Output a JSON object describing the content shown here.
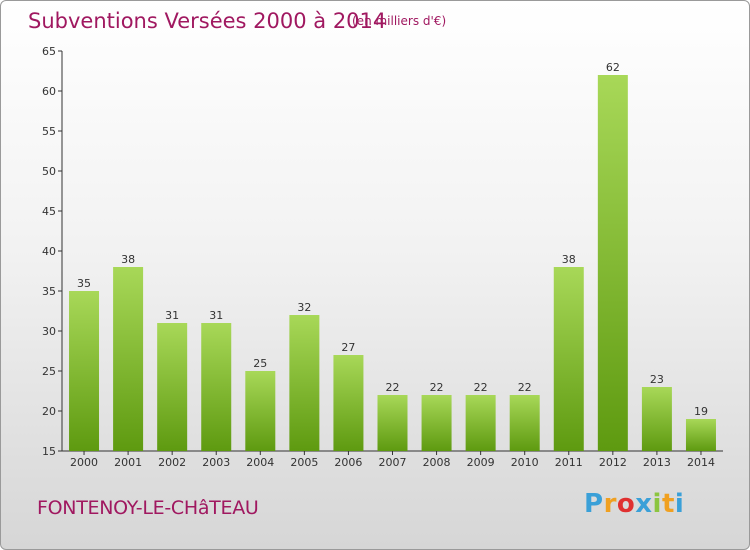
{
  "title": "Subventions Versées 2000 à 2014",
  "subtitle": "(en milliers d'€)",
  "commune": "FONTENOY-LE-CHâTEAU",
  "logo_text": "Proxiti",
  "colors": {
    "title": "#a01860",
    "bar_light": "#a8d858",
    "bar_dark": "#5e9a10",
    "axis": "#333333"
  },
  "chart_data": {
    "type": "bar",
    "title": "Subventions Versées 2000 à 2014",
    "subtitle": "(en milliers d'€)",
    "categories": [
      "2000",
      "2001",
      "2002",
      "2003",
      "2004",
      "2005",
      "2006",
      "2007",
      "2008",
      "2009",
      "2010",
      "2011",
      "2012",
      "2013",
      "2014"
    ],
    "values": [
      35,
      38,
      31,
      31,
      25,
      32,
      27,
      22,
      22,
      22,
      22,
      38,
      62,
      23,
      19
    ],
    "ylim": [
      15,
      65
    ],
    "yticks": [
      15,
      20,
      25,
      30,
      35,
      40,
      45,
      50,
      55,
      60,
      65
    ],
    "grid": false,
    "data_labels": true
  }
}
